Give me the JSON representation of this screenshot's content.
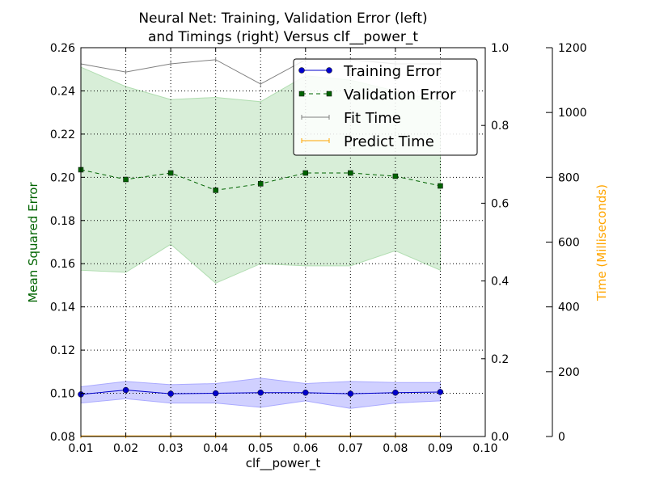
{
  "chart_data": {
    "type": "line",
    "title": "Neural Net: Training, Validation Error (left)",
    "title_line2": "and Timings (right) Versus clf__power_t",
    "xlabel": "clf__power_t",
    "ylabel_left": "Mean Squared Error",
    "ylabel_right": "Time (Milliseconds)",
    "xlim": [
      0.01,
      0.1
    ],
    "ylim_left": [
      0.08,
      0.26
    ],
    "ylim_right_inner": [
      0.0,
      1.0
    ],
    "ylim_right_outer": [
      0,
      1200
    ],
    "grid": true,
    "legend_placement": "top-right",
    "x_ticks": [
      "0.01",
      "0.02",
      "0.03",
      "0.04",
      "0.05",
      "0.06",
      "0.07",
      "0.08",
      "0.09",
      "0.10"
    ],
    "y_ticks_left": [
      "0.08",
      "0.10",
      "0.12",
      "0.14",
      "0.16",
      "0.18",
      "0.20",
      "0.22",
      "0.24",
      "0.26"
    ],
    "y_ticks_right_inner": [
      "0.0",
      "0.2",
      "0.4",
      "0.6",
      "0.8",
      "1.0"
    ],
    "y_ticks_right_outer": [
      "0",
      "200",
      "400",
      "600",
      "800",
      "1000",
      "1200"
    ],
    "x": [
      0.01,
      0.02,
      0.03,
      0.04,
      0.05,
      0.06,
      0.07,
      0.08,
      0.09
    ],
    "series": [
      {
        "name": "Training Error",
        "axis": "left",
        "color": "#0000cc",
        "marker": "circle",
        "values": [
          0.0995,
          0.1015,
          0.0998,
          0.1,
          0.1003,
          0.1003,
          0.0998,
          0.1003,
          0.1006
        ],
        "band_upper": [
          0.103,
          0.1055,
          0.104,
          0.1045,
          0.107,
          0.1045,
          0.1055,
          0.105,
          0.105
        ],
        "band_lower": [
          0.0955,
          0.0975,
          0.0955,
          0.0955,
          0.0935,
          0.0965,
          0.093,
          0.0955,
          0.0965
        ]
      },
      {
        "name": "Validation Error",
        "axis": "left",
        "color": "#006400",
        "marker": "square",
        "values": [
          0.2035,
          0.199,
          0.202,
          0.194,
          0.197,
          0.202,
          0.202,
          0.2005,
          0.196
        ],
        "band_upper": [
          0.251,
          0.242,
          0.236,
          0.237,
          0.235,
          0.247,
          0.245,
          0.24,
          0.235
        ],
        "band_lower": [
          0.157,
          0.156,
          0.169,
          0.151,
          0.16,
          0.159,
          0.159,
          0.166,
          0.157
        ]
      },
      {
        "name": "Fit Time",
        "axis": "right",
        "color": "#808080",
        "marker": "tick",
        "values": [
          1150,
          1125,
          1150,
          1163,
          1088,
          1163,
          1163,
          1150,
          1150
        ]
      },
      {
        "name": "Predict Time",
        "axis": "right",
        "color": "#ffa500",
        "marker": "tick",
        "values": [
          2,
          2,
          2,
          2,
          2,
          2,
          2,
          2,
          2
        ]
      }
    ],
    "colors": {
      "left_axis_label": "#006400",
      "right_axis_label": "#ffa500",
      "training_band": "#aaaaff",
      "validation_band": "#b2deb2"
    }
  }
}
